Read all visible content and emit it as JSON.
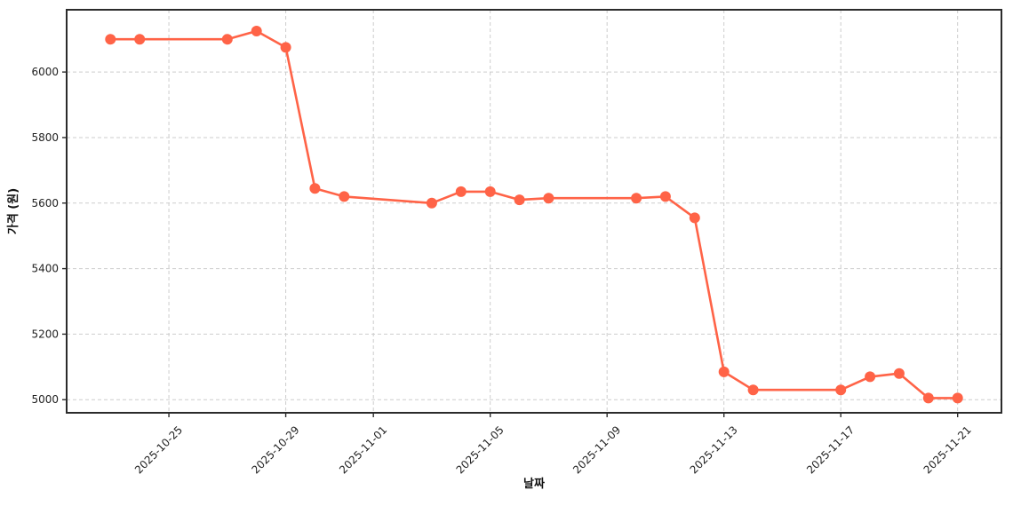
{
  "chart_data": {
    "type": "line",
    "title": "",
    "xlabel": "날짜",
    "ylabel": "가격 (원)",
    "series_name": "가격",
    "x": [
      "2025-10-23",
      "2025-10-24",
      "2025-10-27",
      "2025-10-28",
      "2025-10-29",
      "2025-10-30",
      "2025-10-31",
      "2025-11-03",
      "2025-11-04",
      "2025-11-05",
      "2025-11-06",
      "2025-11-07",
      "2025-11-10",
      "2025-11-11",
      "2025-11-12",
      "2025-11-13",
      "2025-11-14",
      "2025-11-17",
      "2025-11-18",
      "2025-11-19",
      "2025-11-20",
      "2025-11-21"
    ],
    "y": [
      6100,
      6100,
      6100,
      6125,
      6075,
      5645,
      5620,
      5600,
      5635,
      5635,
      5610,
      5615,
      5615,
      5620,
      5555,
      5085,
      5030,
      5030,
      5070,
      5080,
      5005,
      5005
    ],
    "x_tick_labels": [
      "2025-10-25",
      "2025-10-29",
      "2025-11-01",
      "2025-11-05",
      "2025-11-09",
      "2025-11-13",
      "2025-11-17",
      "2025-11-21"
    ],
    "y_tick_labels": [
      5000,
      5200,
      5400,
      5600,
      5800,
      6000
    ],
    "ylim": [
      4960,
      6190
    ],
    "x_pad_days": 1.5,
    "x_tick_rotation": 45,
    "grid": true,
    "grid_style": "dashed",
    "legend_position": "none",
    "marker": "circle",
    "colors": {
      "line": "#FF6347",
      "marker": "#FF6347",
      "grid": "#cdcdcd",
      "spine": "#2b2b2b",
      "tick_text": "#1f1f1f",
      "background": "#ffffff"
    }
  }
}
